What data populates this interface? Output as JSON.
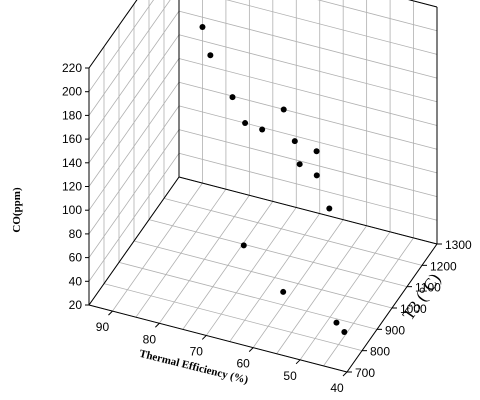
{
  "chart_data": {
    "type": "scatter3d",
    "title": "",
    "xlabel": "Thermal Efficiency (%)",
    "ylabel": "T3 (°C)",
    "zlabel": "CO(ppm)",
    "xlim": [
      40,
      95
    ],
    "ylim": [
      700,
      1300
    ],
    "zlim": [
      20,
      220
    ],
    "x_ticks": [
      90,
      80,
      70,
      60,
      50,
      40
    ],
    "y_ticks": [
      700,
      800,
      900,
      1000,
      1100,
      1200,
      1300
    ],
    "z_ticks": [
      20,
      40,
      60,
      80,
      100,
      120,
      140,
      160,
      180,
      200,
      220
    ],
    "grid": true,
    "marker_color": "#000000",
    "points": [
      {
        "x": 82,
        "y": 1050,
        "z": 205
      },
      {
        "x": 80,
        "y": 1040,
        "z": 185
      },
      {
        "x": 74,
        "y": 1000,
        "z": 163
      },
      {
        "x": 71,
        "y": 990,
        "z": 146
      },
      {
        "x": 68,
        "y": 1010,
        "z": 140
      },
      {
        "x": 65,
        "y": 1060,
        "z": 151
      },
      {
        "x": 62,
        "y": 1040,
        "z": 131
      },
      {
        "x": 60,
        "y": 1010,
        "z": 119
      },
      {
        "x": 58,
        "y": 1060,
        "z": 123
      },
      {
        "x": 57,
        "y": 1030,
        "z": 109
      },
      {
        "x": 54,
        "y": 1020,
        "z": 86
      },
      {
        "x": 70,
        "y": 950,
        "z": 51
      },
      {
        "x": 60,
        "y": 900,
        "z": 31
      },
      {
        "x": 48,
        "y": 880,
        "z": 21
      },
      {
        "x": 46,
        "y": 870,
        "z": 17
      }
    ]
  }
}
